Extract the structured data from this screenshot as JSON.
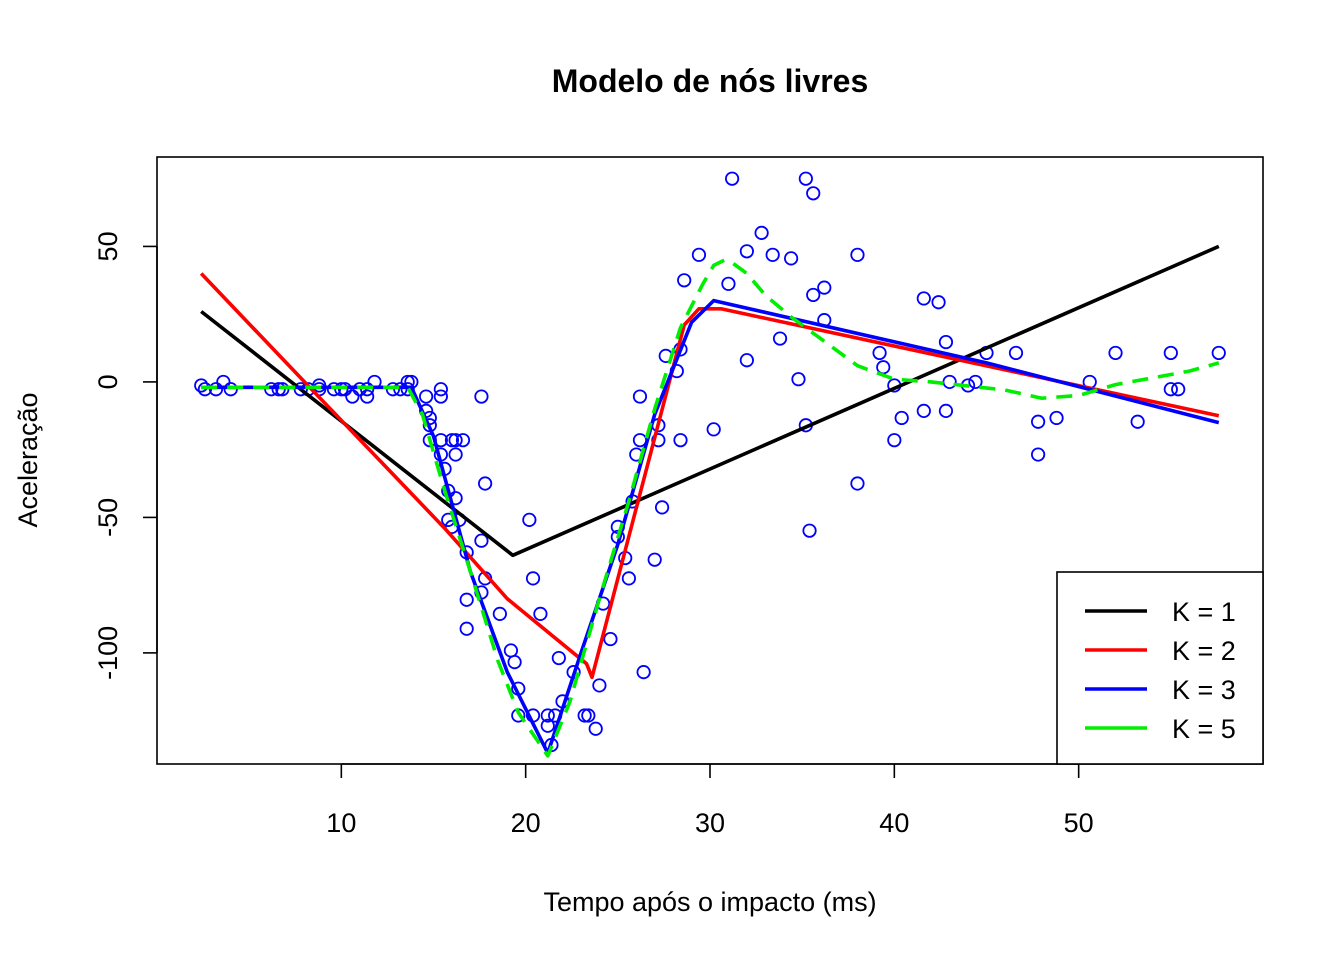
{
  "chart_data": {
    "type": "scatter",
    "title": "Modelo de nós livres",
    "xlabel": "Tempo após o impacto (ms)",
    "ylabel": "Aceleração",
    "xlim": [
      0,
      60
    ],
    "ylim": [
      -141,
      83
    ],
    "xticks": [
      10,
      20,
      30,
      40,
      50
    ],
    "yticks": [
      50,
      0,
      -50,
      -100
    ],
    "colors": {
      "points": "#0000ff",
      "k1": "#000000",
      "k2": "#ff0000",
      "k3": "#0000ff",
      "k5": "#00ee00"
    },
    "legend": {
      "position": "bottom-right",
      "entries": [
        {
          "label": "K = 1",
          "color": "#000000"
        },
        {
          "label": "K = 2",
          "color": "#ff0000"
        },
        {
          "label": "K = 3",
          "color": "#0000ff"
        },
        {
          "label": "K = 5",
          "color": "#00ee00"
        }
      ]
    },
    "points": {
      "marker": "open-circle",
      "x": [
        2.4,
        2.6,
        3.2,
        3.6,
        4.0,
        6.2,
        6.6,
        6.8,
        7.8,
        8.2,
        8.8,
        8.8,
        9.6,
        10.0,
        10.2,
        10.6,
        11.0,
        11.4,
        11.4,
        11.8,
        12.8,
        13.2,
        13.6,
        13.6,
        13.8,
        14.6,
        14.6,
        14.8,
        14.8,
        14.8,
        15.4,
        15.4,
        15.4,
        15.4,
        15.6,
        15.8,
        15.8,
        16.0,
        16.0,
        16.2,
        16.2,
        16.2,
        16.4,
        16.6,
        16.8,
        16.8,
        16.8,
        17.6,
        17.6,
        17.6,
        17.8,
        17.8,
        18.6,
        19.2,
        19.4,
        19.6,
        19.6,
        20.2,
        20.4,
        20.4,
        20.8,
        21.2,
        21.2,
        21.4,
        21.6,
        21.8,
        22.0,
        22.6,
        23.2,
        23.4,
        23.8,
        24.0,
        24.2,
        24.6,
        25.0,
        25.0,
        25.4,
        25.6,
        25.8,
        26.0,
        26.2,
        26.2,
        26.4,
        27.0,
        27.2,
        27.2,
        27.4,
        27.6,
        28.2,
        28.4,
        28.4,
        28.6,
        29.4,
        30.2,
        31.0,
        31.2,
        32.0,
        32.0,
        32.8,
        33.4,
        33.8,
        34.4,
        34.8,
        35.2,
        35.2,
        35.4,
        35.6,
        35.6,
        36.2,
        36.2,
        38.0,
        38.0,
        39.2,
        39.4,
        40.0,
        40.0,
        40.4,
        41.6,
        41.6,
        42.4,
        42.8,
        42.8,
        43.0,
        44.0,
        44.4,
        45.0,
        46.6,
        47.8,
        47.8,
        48.8,
        50.6,
        52.0,
        53.2,
        55.0,
        55.0,
        55.4,
        57.6
      ],
      "y": [
        -1.3,
        -2.7,
        -2.7,
        0,
        -2.7,
        -2.7,
        -2.7,
        -2.7,
        -2.7,
        -2.7,
        -1.3,
        -2.7,
        -2.7,
        -2.7,
        -2.7,
        -5.4,
        -2.7,
        -2.7,
        -5.4,
        0,
        -2.7,
        -2.7,
        -2.7,
        0,
        0,
        -5.4,
        -10.7,
        -13.3,
        -16.0,
        -21.5,
        -2.7,
        -5.4,
        -21.5,
        -26.8,
        -32.1,
        -40.2,
        -50.9,
        -53.5,
        -21.5,
        -21.5,
        -26.8,
        -42.9,
        -50.9,
        -21.5,
        -62.9,
        -80.4,
        -91.1,
        -5.4,
        -58.6,
        -77.7,
        -72.5,
        -37.5,
        -85.6,
        -99.1,
        -103.4,
        -123.1,
        -113.2,
        -50.9,
        -72.5,
        -123.1,
        -85.6,
        -126.9,
        -123.1,
        -134.0,
        -123.1,
        -101.9,
        -117.9,
        -107.1,
        -123.1,
        -123.1,
        -128.0,
        -112.0,
        -81.8,
        -94.9,
        -53.5,
        -57.2,
        -65.0,
        -72.5,
        -44.1,
        -26.8,
        -5.4,
        -21.5,
        -107.1,
        -65.6,
        -16.0,
        -21.5,
        -46.3,
        9.6,
        4.0,
        -21.5,
        12.0,
        37.5,
        46.9,
        -17.5,
        36.2,
        75.0,
        8.0,
        48.2,
        55.0,
        46.9,
        16.0,
        45.6,
        1.0,
        75.0,
        -16.0,
        -54.9,
        69.6,
        32.1,
        34.8,
        22.8,
        -37.5,
        46.9,
        10.7,
        5.4,
        -1.3,
        -21.5,
        -13.3,
        30.8,
        -10.7,
        29.4,
        14.7,
        -10.7,
        0,
        -1.3,
        0,
        10.7,
        10.7,
        -14.7,
        -26.8,
        -13.3,
        0,
        10.7,
        -14.7,
        -2.7,
        10.7,
        -2.7,
        10.7
      ]
    },
    "series": [
      {
        "name": "K = 1",
        "style": "solid",
        "x": [
          2.4,
          19.3,
          57.6
        ],
        "y": [
          26,
          -64,
          50
        ]
      },
      {
        "name": "K = 2",
        "style": "solid",
        "x": [
          2.4,
          8.0,
          15.6,
          19.0,
          23.3,
          23.6,
          28.6,
          29.4,
          30.6,
          57.6
        ],
        "y": [
          40,
          0,
          -54,
          -80,
          -104,
          -109,
          21,
          27,
          27,
          -12.5
        ]
      },
      {
        "name": "K = 3",
        "style": "solid",
        "x": [
          2.4,
          6.0,
          10.0,
          13.8,
          15.0,
          17.0,
          19.0,
          21.2,
          23.0,
          25.0,
          27.0,
          29.0,
          30.2,
          45.0,
          57.6
        ],
        "y": [
          -2,
          -2,
          -2,
          -2,
          -20,
          -70,
          -107,
          -137,
          -100,
          -60,
          -12,
          22,
          30,
          7,
          -15
        ]
      },
      {
        "name": "K = 5",
        "style": "dashed",
        "x": [
          2.4,
          6.0,
          10.0,
          13.6,
          14.4,
          15.6,
          17.0,
          18.5,
          19.6,
          21.2,
          22.4,
          24.0,
          25.6,
          27.0,
          28.4,
          29.6,
          30.2,
          30.8,
          31.2,
          32.0,
          33.0,
          34.4,
          36.0,
          38.0,
          40.0,
          42.0,
          44.0,
          46.0,
          48.0,
          50.0,
          52.0,
          54.0,
          56.0,
          57.6
        ],
        "y": [
          -2,
          -2,
          -2,
          -2,
          -12,
          -40,
          -70,
          -103,
          -122,
          -138,
          -118,
          -80,
          -44,
          -10,
          20,
          36,
          43,
          45,
          44,
          40,
          32,
          24,
          16,
          6,
          1,
          0,
          -1.5,
          -3,
          -6,
          -5,
          -1,
          1.5,
          4,
          7
        ]
      }
    ]
  }
}
